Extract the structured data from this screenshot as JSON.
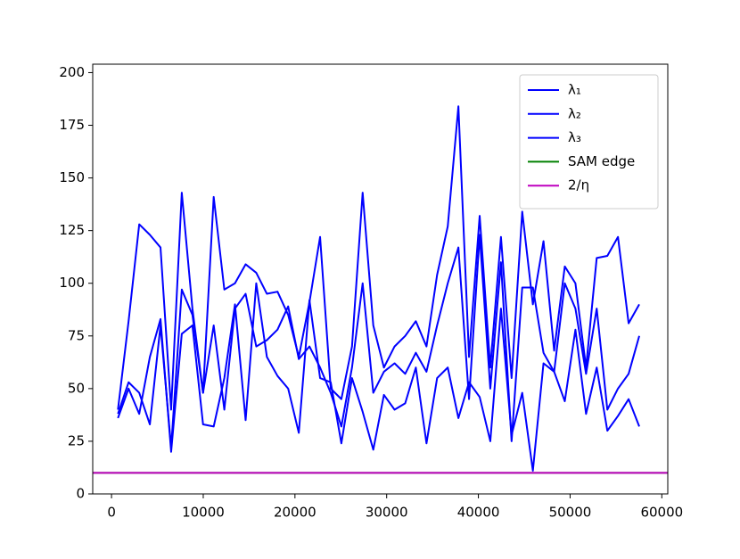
{
  "chart_data": {
    "type": "line",
    "x": [
      700,
      1860,
      3020,
      4180,
      5340,
      6500,
      7660,
      8820,
      9980,
      11140,
      12300,
      13460,
      14620,
      15780,
      16940,
      18100,
      19260,
      20420,
      21580,
      22740,
      23900,
      25060,
      26220,
      27380,
      28540,
      29700,
      30860,
      32020,
      33180,
      34340,
      35500,
      36660,
      37820,
      38980,
      40140,
      41300,
      42460,
      43620,
      44780,
      45940,
      47100,
      48260,
      49420,
      50580,
      51740,
      52900,
      54060,
      55220,
      56380,
      57540
    ],
    "series": [
      {
        "name": "λ₁",
        "color": "#0000ff",
        "values": [
          40,
          82,
          128,
          123,
          117,
          40,
          143,
          88,
          48,
          141,
          97,
          100,
          109,
          105,
          95,
          96,
          85,
          65,
          91,
          122,
          50,
          45,
          70,
          143,
          80,
          60,
          70,
          75,
          82,
          70,
          104,
          127,
          184,
          65,
          132,
          60,
          122,
          55,
          134,
          90,
          120,
          68,
          108,
          100,
          60,
          112,
          113,
          122,
          81,
          90
        ]
      },
      {
        "name": "λ₂",
        "color": "#0000ff",
        "values": [
          38,
          53,
          48,
          33,
          80,
          22,
          97,
          85,
          48,
          80,
          40,
          88,
          95,
          70,
          73,
          78,
          89,
          64,
          70,
          60,
          48,
          32,
          60,
          100,
          48,
          58,
          62,
          57,
          67,
          58,
          80,
          100,
          117,
          45,
          123,
          50,
          110,
          25,
          98,
          98,
          67,
          58,
          100,
          88,
          57,
          88,
          40,
          50,
          57,
          75
        ]
      },
      {
        "name": "λ₃",
        "color": "#0000ff",
        "values": [
          36,
          50,
          38,
          65,
          83,
          20,
          76,
          80,
          33,
          32,
          55,
          90,
          35,
          100,
          65,
          56,
          50,
          29,
          92,
          55,
          53,
          24,
          55,
          39,
          21,
          47,
          40,
          43,
          60,
          24,
          55,
          60,
          36,
          53,
          46,
          25,
          88,
          28,
          48,
          11,
          62,
          58,
          44,
          78,
          38,
          60,
          30,
          37,
          45,
          32
        ]
      }
    ],
    "hlines": [
      {
        "name": "SAM edge",
        "color": "#008000",
        "value": 10
      },
      {
        "name": "2/η",
        "color": "#bf00bf",
        "value": 10
      }
    ],
    "xlim": [
      -2050,
      60650
    ],
    "xticks": [
      0,
      10000,
      20000,
      30000,
      40000,
      50000,
      60000
    ],
    "ylim": [
      0,
      204
    ],
    "yticks": [
      0,
      25,
      50,
      75,
      100,
      125,
      150,
      175,
      200
    ],
    "grid": false,
    "legend": "upper right"
  }
}
